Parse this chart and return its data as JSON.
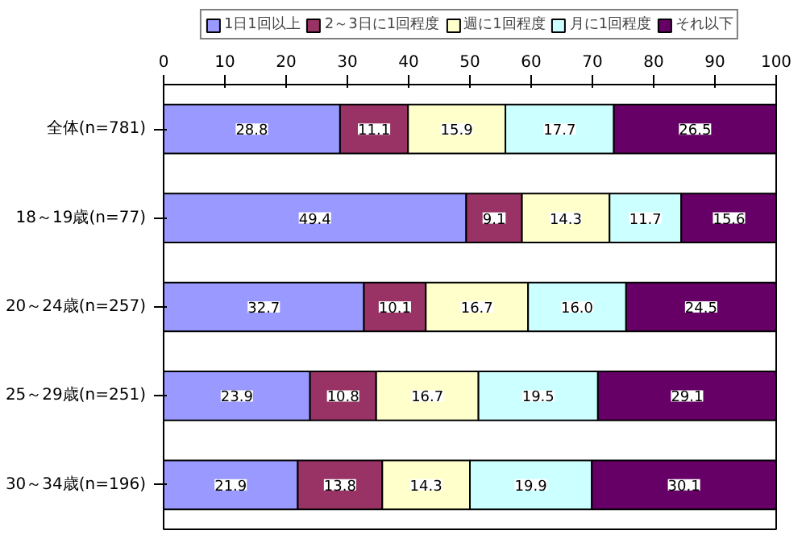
{
  "chart_data": {
    "type": "bar",
    "orientation": "horizontal",
    "stacked": true,
    "legend": "top",
    "grid": false,
    "categories": [
      "全体(n=781)",
      "18～19歳(n=77)",
      "20～24歳(n=257)",
      "25～29歳(n=251)",
      "30～34歳(n=196)"
    ],
    "xlim": [
      0,
      100
    ],
    "xticks": [
      0,
      10,
      20,
      30,
      40,
      50,
      60,
      70,
      80,
      90,
      100
    ],
    "series": [
      {
        "name": "1日1回以上",
        "color": "#9999ff",
        "values": [
          28.8,
          49.4,
          32.7,
          23.9,
          21.9
        ],
        "value_labels": [
          "28.8",
          "49.4",
          "32.7",
          "23.9",
          "21.9"
        ]
      },
      {
        "name": "2～3日に1回程度",
        "color": "#993366",
        "values": [
          11.1,
          9.1,
          10.1,
          10.8,
          13.8
        ],
        "value_labels": [
          "11.1",
          "9.1",
          "10.1",
          "10.8",
          "13.8"
        ]
      },
      {
        "name": "週に1回程度",
        "color": "#ffffcc",
        "values": [
          15.9,
          14.3,
          16.7,
          16.7,
          14.3
        ],
        "value_labels": [
          "15.9",
          "14.3",
          "16.7",
          "16.7",
          "14.3"
        ]
      },
      {
        "name": "月に1回程度",
        "color": "#ccffff",
        "values": [
          17.7,
          11.7,
          16.0,
          19.5,
          19.9
        ],
        "value_labels": [
          "17.7",
          "11.7",
          "16.0",
          "19.5",
          "19.9"
        ]
      },
      {
        "name": "それ以下",
        "color": "#660066",
        "values": [
          26.5,
          15.6,
          24.5,
          29.1,
          30.1
        ],
        "value_labels": [
          "26.5",
          "15.6",
          "24.5",
          "29.1",
          "30.1"
        ]
      }
    ]
  }
}
